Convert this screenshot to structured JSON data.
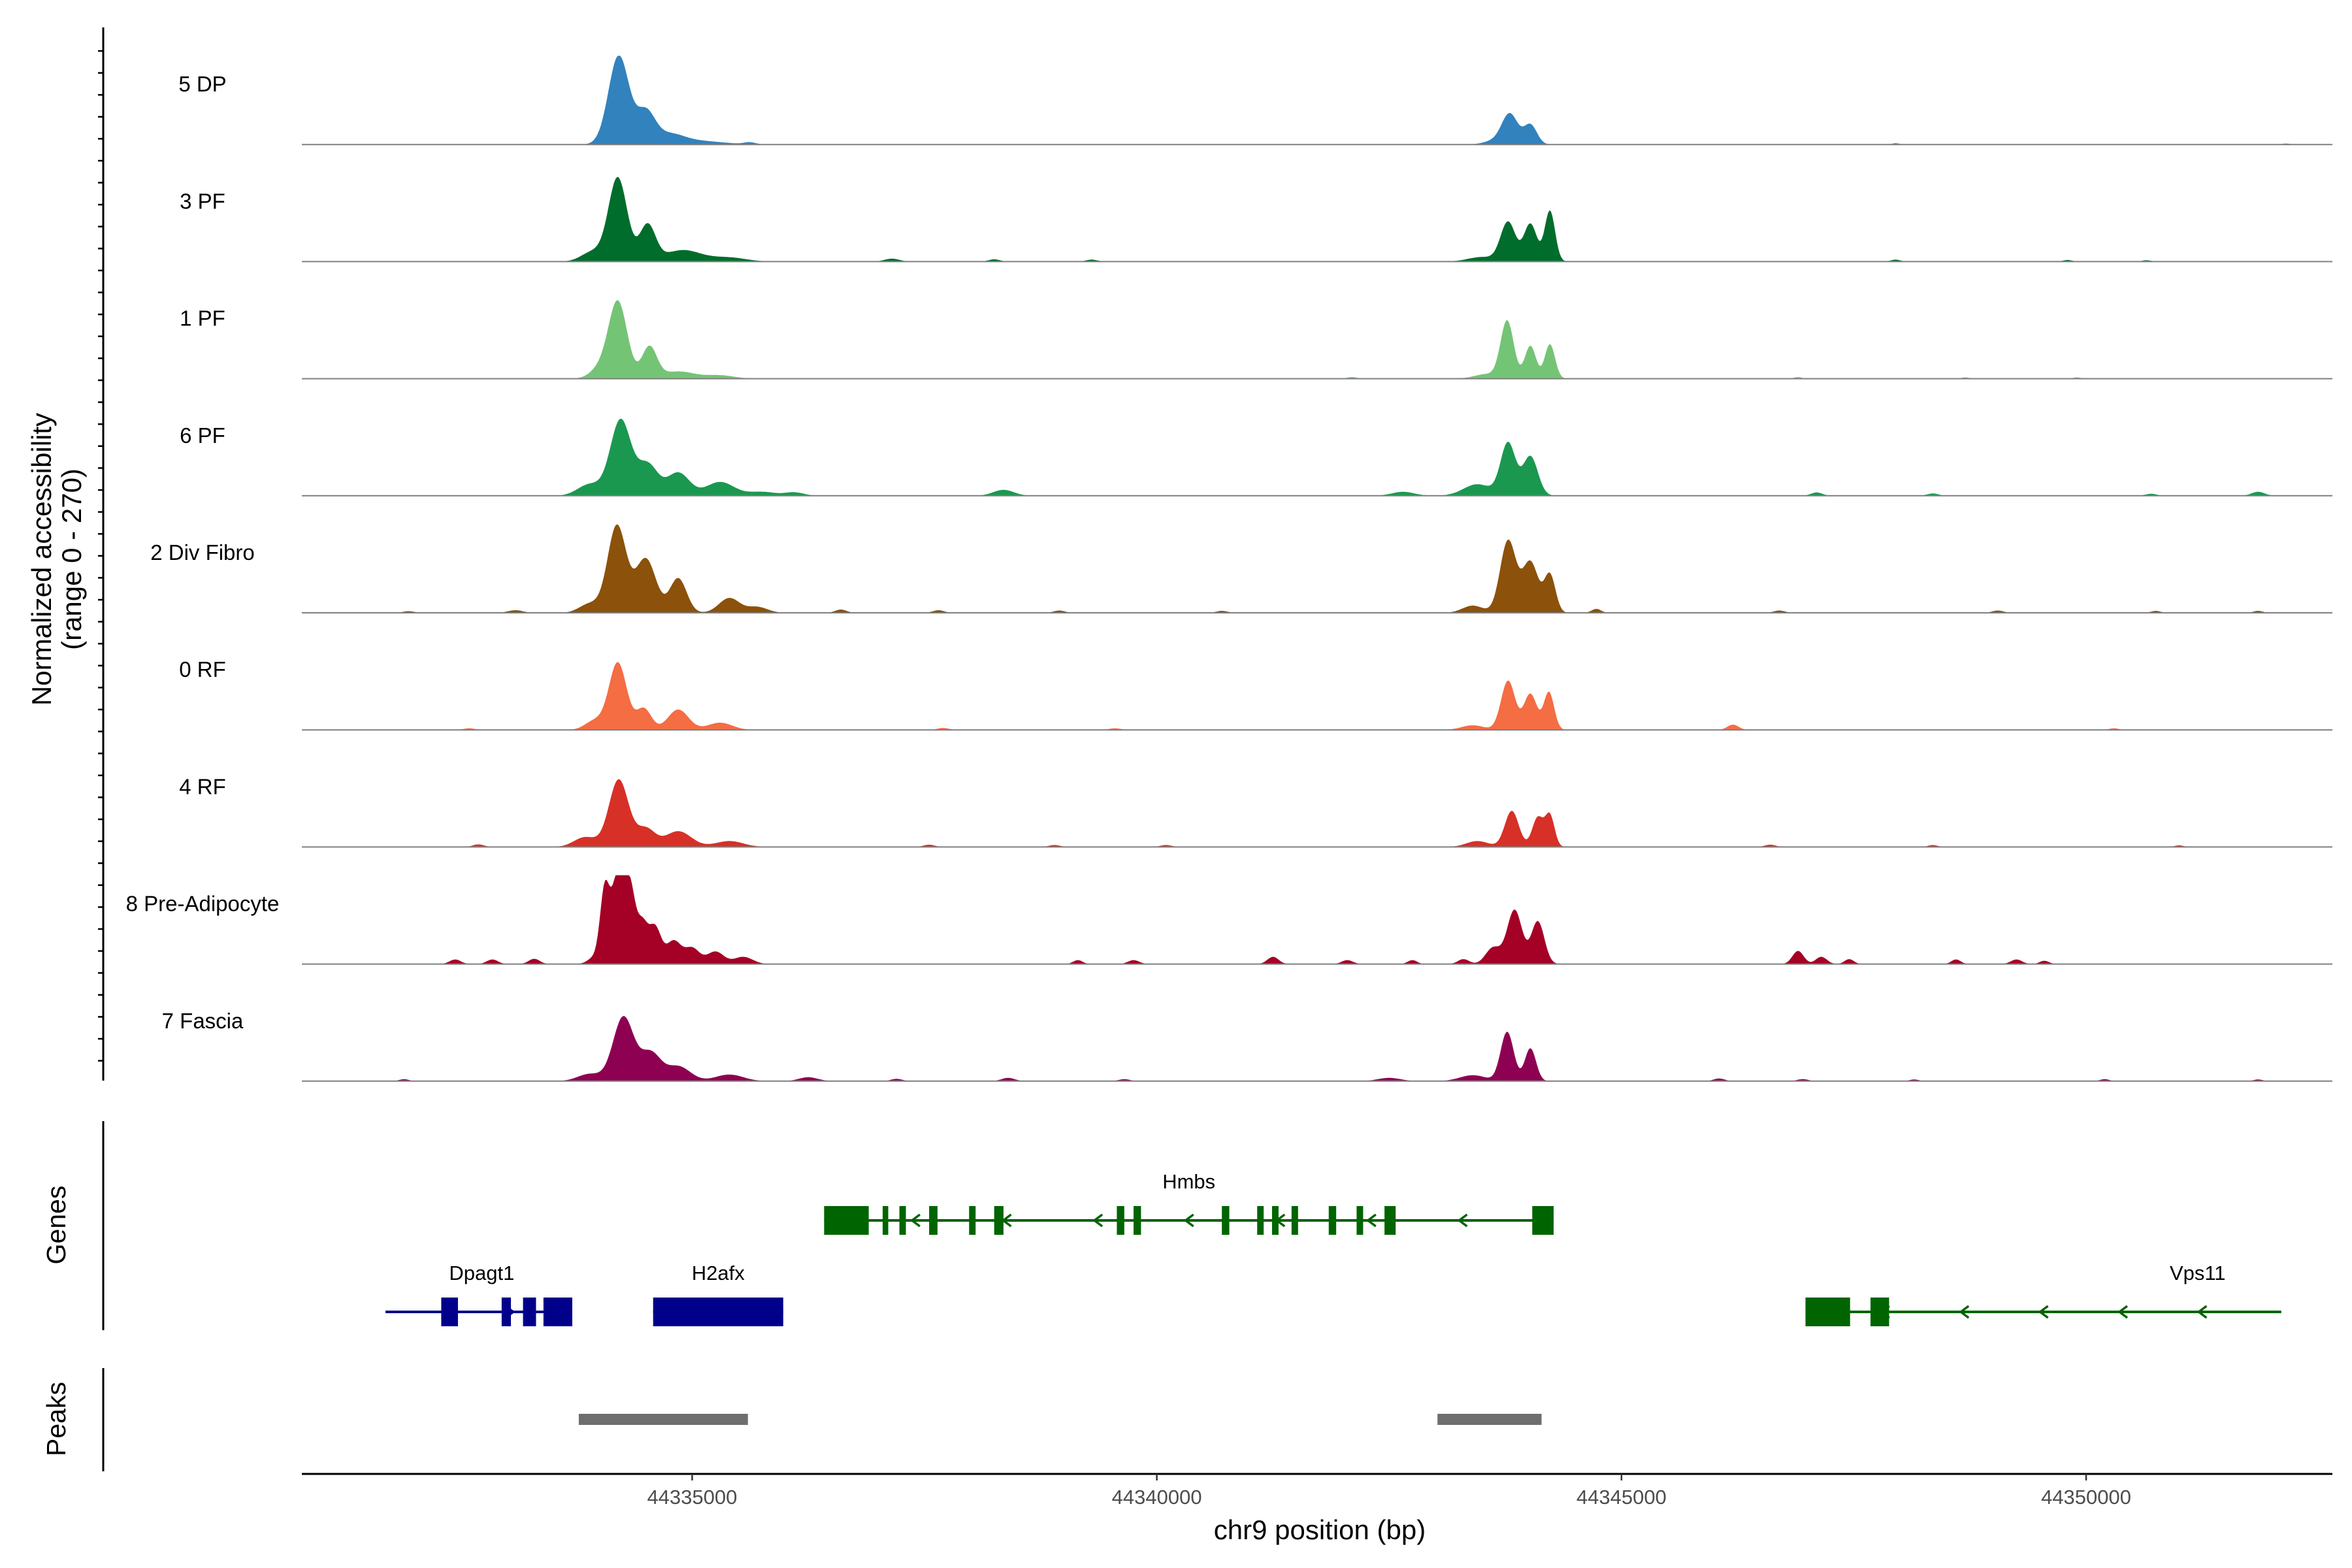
{
  "chart_data": {
    "type": "area",
    "title": "",
    "region": {
      "chrom": "chr9",
      "start": 44330800,
      "end": 44352650
    },
    "xlabel": "chr9 position (bp)",
    "ylabel": "Normalized accessibility",
    "ylabel_sub": "(range 0 - 270)",
    "ylim": [
      0,
      270
    ],
    "xticks": [
      44335000,
      44340000,
      44345000,
      44350000
    ],
    "tracks": [
      {
        "name": "5 DP",
        "color": "#3182BD",
        "peaks": [
          [
            44334210,
            270,
            110
          ],
          [
            44334500,
            95,
            100
          ],
          [
            44334750,
            25,
            150
          ],
          [
            44335000,
            12,
            300
          ],
          [
            44335620,
            6,
            60
          ],
          [
            44343800,
            90,
            85
          ],
          [
            44344020,
            60,
            70
          ],
          [
            44343650,
            12,
            120
          ],
          [
            44347950,
            4,
            40
          ],
          [
            44352150,
            3,
            40
          ]
        ]
      },
      {
        "name": "3 PF",
        "color": "#006D2C",
        "peaks": [
          [
            44334200,
            255,
            100
          ],
          [
            44334520,
            110,
            85
          ],
          [
            44333930,
            30,
            120
          ],
          [
            44334900,
            35,
            200
          ],
          [
            44335400,
            12,
            180
          ],
          [
            44343780,
            120,
            80
          ],
          [
            44344020,
            115,
            70
          ],
          [
            44344230,
            155,
            55
          ],
          [
            44343500,
            14,
            150
          ],
          [
            44337150,
            9,
            80
          ],
          [
            44338250,
            7,
            60
          ],
          [
            44339300,
            6,
            60
          ],
          [
            44347950,
            6,
            50
          ],
          [
            44349800,
            5,
            50
          ],
          [
            44350650,
            4,
            50
          ]
        ]
      },
      {
        "name": "1 PF",
        "color": "#74C476",
        "peaks": [
          [
            44334200,
            235,
            100
          ],
          [
            44334540,
            95,
            80
          ],
          [
            44334000,
            28,
            100
          ],
          [
            44334850,
            22,
            180
          ],
          [
            44335300,
            10,
            150
          ],
          [
            44343770,
            175,
            70
          ],
          [
            44344020,
            100,
            60
          ],
          [
            44344230,
            105,
            55
          ],
          [
            44343550,
            14,
            130
          ],
          [
            44342100,
            5,
            50
          ],
          [
            44346900,
            5,
            40
          ],
          [
            44348700,
            4,
            40
          ],
          [
            44349900,
            4,
            40
          ]
        ]
      },
      {
        "name": "6 PF",
        "color": "#1A9850",
        "peaks": [
          [
            44334230,
            230,
            110
          ],
          [
            44334520,
            95,
            110
          ],
          [
            44333900,
            35,
            130
          ],
          [
            44334850,
            70,
            120
          ],
          [
            44335300,
            42,
            150
          ],
          [
            44335750,
            12,
            150
          ],
          [
            44343780,
            160,
            80
          ],
          [
            44344020,
            120,
            80
          ],
          [
            44343450,
            35,
            150
          ],
          [
            44342650,
            12,
            120
          ],
          [
            44338350,
            18,
            110
          ],
          [
            44336100,
            10,
            100
          ],
          [
            44347100,
            10,
            60
          ],
          [
            44348350,
            7,
            60
          ],
          [
            44350700,
            6,
            60
          ],
          [
            44351850,
            12,
            70
          ]
        ]
      },
      {
        "name": "2 Div Fibro",
        "color": "#8C510A",
        "peaks": [
          [
            44334190,
            265,
            100
          ],
          [
            44334500,
            165,
            110
          ],
          [
            44334850,
            105,
            90
          ],
          [
            44333900,
            28,
            110
          ],
          [
            44335400,
            45,
            110
          ],
          [
            44335700,
            18,
            110
          ],
          [
            44343780,
            220,
            85
          ],
          [
            44344020,
            155,
            85
          ],
          [
            44344230,
            115,
            60
          ],
          [
            44343400,
            22,
            110
          ],
          [
            44344730,
            12,
            50
          ],
          [
            44331950,
            5,
            60
          ],
          [
            44333100,
            8,
            80
          ],
          [
            44336600,
            10,
            60
          ],
          [
            44337650,
            8,
            60
          ],
          [
            44338950,
            7,
            60
          ],
          [
            44340700,
            6,
            60
          ],
          [
            44346700,
            7,
            60
          ],
          [
            44349050,
            7,
            60
          ],
          [
            44350750,
            6,
            50
          ],
          [
            44351850,
            6,
            50
          ]
        ]
      },
      {
        "name": "0 RF",
        "color": "#F46D43",
        "peaks": [
          [
            44334200,
            205,
            95
          ],
          [
            44334480,
            65,
            80
          ],
          [
            44334850,
            62,
            110
          ],
          [
            44333950,
            28,
            100
          ],
          [
            44335300,
            22,
            130
          ],
          [
            44343780,
            150,
            75
          ],
          [
            44344020,
            110,
            70
          ],
          [
            44344220,
            115,
            55
          ],
          [
            44343400,
            14,
            120
          ],
          [
            44346200,
            16,
            60
          ],
          [
            44332600,
            5,
            60
          ],
          [
            44337700,
            6,
            60
          ],
          [
            44339550,
            5,
            60
          ],
          [
            44350300,
            5,
            50
          ]
        ]
      },
      {
        "name": "4 RF",
        "color": "#D73027",
        "peaks": [
          [
            44334210,
            205,
            105
          ],
          [
            44334500,
            55,
            100
          ],
          [
            44334850,
            48,
            140
          ],
          [
            44333850,
            30,
            120
          ],
          [
            44335400,
            18,
            150
          ],
          [
            44343820,
            110,
            75
          ],
          [
            44344100,
            90,
            60
          ],
          [
            44344230,
            95,
            50
          ],
          [
            44343450,
            18,
            120
          ],
          [
            44332700,
            8,
            60
          ],
          [
            44337550,
            7,
            60
          ],
          [
            44338900,
            6,
            60
          ],
          [
            44340100,
            6,
            60
          ],
          [
            44346600,
            7,
            60
          ],
          [
            44348350,
            6,
            50
          ],
          [
            44351000,
            5,
            50
          ]
        ]
      },
      {
        "name": "8 Pre-Adipocyte",
        "color": "#A50026",
        "peaks": [
          [
            44334060,
            220,
            50
          ],
          [
            44334200,
            270,
            65
          ],
          [
            44334330,
            220,
            55
          ],
          [
            44334460,
            120,
            60
          ],
          [
            44334600,
            110,
            65
          ],
          [
            44334800,
            70,
            80
          ],
          [
            44335000,
            48,
            80
          ],
          [
            44335250,
            38,
            90
          ],
          [
            44335550,
            22,
            100
          ],
          [
            44333950,
            20,
            70
          ],
          [
            44343620,
            50,
            80
          ],
          [
            44343850,
            165,
            80
          ],
          [
            44344100,
            130,
            70
          ],
          [
            44343300,
            15,
            60
          ],
          [
            44342750,
            12,
            50
          ],
          [
            44342050,
            12,
            60
          ],
          [
            44341250,
            22,
            60
          ],
          [
            44339750,
            12,
            60
          ],
          [
            44339150,
            12,
            50
          ],
          [
            44346900,
            40,
            60
          ],
          [
            44347150,
            22,
            60
          ],
          [
            44347450,
            15,
            50
          ],
          [
            44348600,
            14,
            50
          ],
          [
            44349250,
            14,
            60
          ],
          [
            44349550,
            10,
            50
          ],
          [
            44332450,
            14,
            60
          ],
          [
            44332850,
            14,
            60
          ],
          [
            44333300,
            16,
            60
          ]
        ]
      },
      {
        "name": "7 Fascia",
        "color": "#8E0152",
        "peaks": [
          [
            44334260,
            195,
            110
          ],
          [
            44334550,
            85,
            110
          ],
          [
            44334850,
            45,
            130
          ],
          [
            44333900,
            22,
            130
          ],
          [
            44335400,
            20,
            150
          ],
          [
            44343770,
            150,
            70
          ],
          [
            44344020,
            100,
            60
          ],
          [
            44343400,
            18,
            140
          ],
          [
            44342500,
            10,
            120
          ],
          [
            44336250,
            12,
            100
          ],
          [
            44337200,
            7,
            60
          ],
          [
            44338400,
            10,
            70
          ],
          [
            44339650,
            6,
            60
          ],
          [
            44331900,
            6,
            50
          ],
          [
            44346050,
            8,
            60
          ],
          [
            44346950,
            6,
            60
          ],
          [
            44348150,
            5,
            50
          ],
          [
            44350200,
            6,
            50
          ],
          [
            44351850,
            5,
            50
          ]
        ]
      }
    ],
    "genes_title": "Genes",
    "genes": [
      {
        "name": "Dpagt1",
        "strand": "+",
        "row": 1,
        "color": "#00008B",
        "start": 44331700,
        "end": 44333710,
        "exons": [
          [
            44332300,
            44332480
          ],
          [
            44332950,
            44333050
          ],
          [
            44333180,
            44333320
          ],
          [
            44333400,
            44333710
          ]
        ]
      },
      {
        "name": "H2afx",
        "strand": "+",
        "row": 1,
        "color": "#00008B",
        "start": 44334580,
        "end": 44335980,
        "exons": [
          [
            44334580,
            44335980
          ]
        ]
      },
      {
        "name": "Hmbs",
        "strand": "-",
        "row": 0,
        "color": "#006400",
        "start": 44336420,
        "end": 44344270,
        "exons": [
          [
            44336420,
            44336900
          ],
          [
            44337050,
            44337110
          ],
          [
            44337230,
            44337300
          ],
          [
            44337550,
            44337640
          ],
          [
            44337980,
            44338050
          ],
          [
            44338250,
            44338350
          ],
          [
            44339570,
            44339650
          ],
          [
            44339750,
            44339830
          ],
          [
            44340700,
            44340780
          ],
          [
            44341080,
            44341150
          ],
          [
            44341240,
            44341310
          ],
          [
            44341450,
            44341520
          ],
          [
            44341850,
            44341930
          ],
          [
            44342150,
            44342220
          ],
          [
            44342450,
            44342570
          ],
          [
            44344040,
            44344270
          ]
        ]
      },
      {
        "name": "Vps11",
        "strand": "-",
        "row": 1,
        "color": "#006400",
        "start": 44346980,
        "end": 44352100,
        "exons": [
          [
            44346980,
            44347460
          ],
          [
            44347680,
            44347880
          ]
        ]
      }
    ],
    "peaks_title": "Peaks",
    "peak_regions": [
      [
        44333780,
        44335600
      ],
      [
        44343020,
        44344140
      ]
    ],
    "peak_color": "#6E6E6E"
  }
}
